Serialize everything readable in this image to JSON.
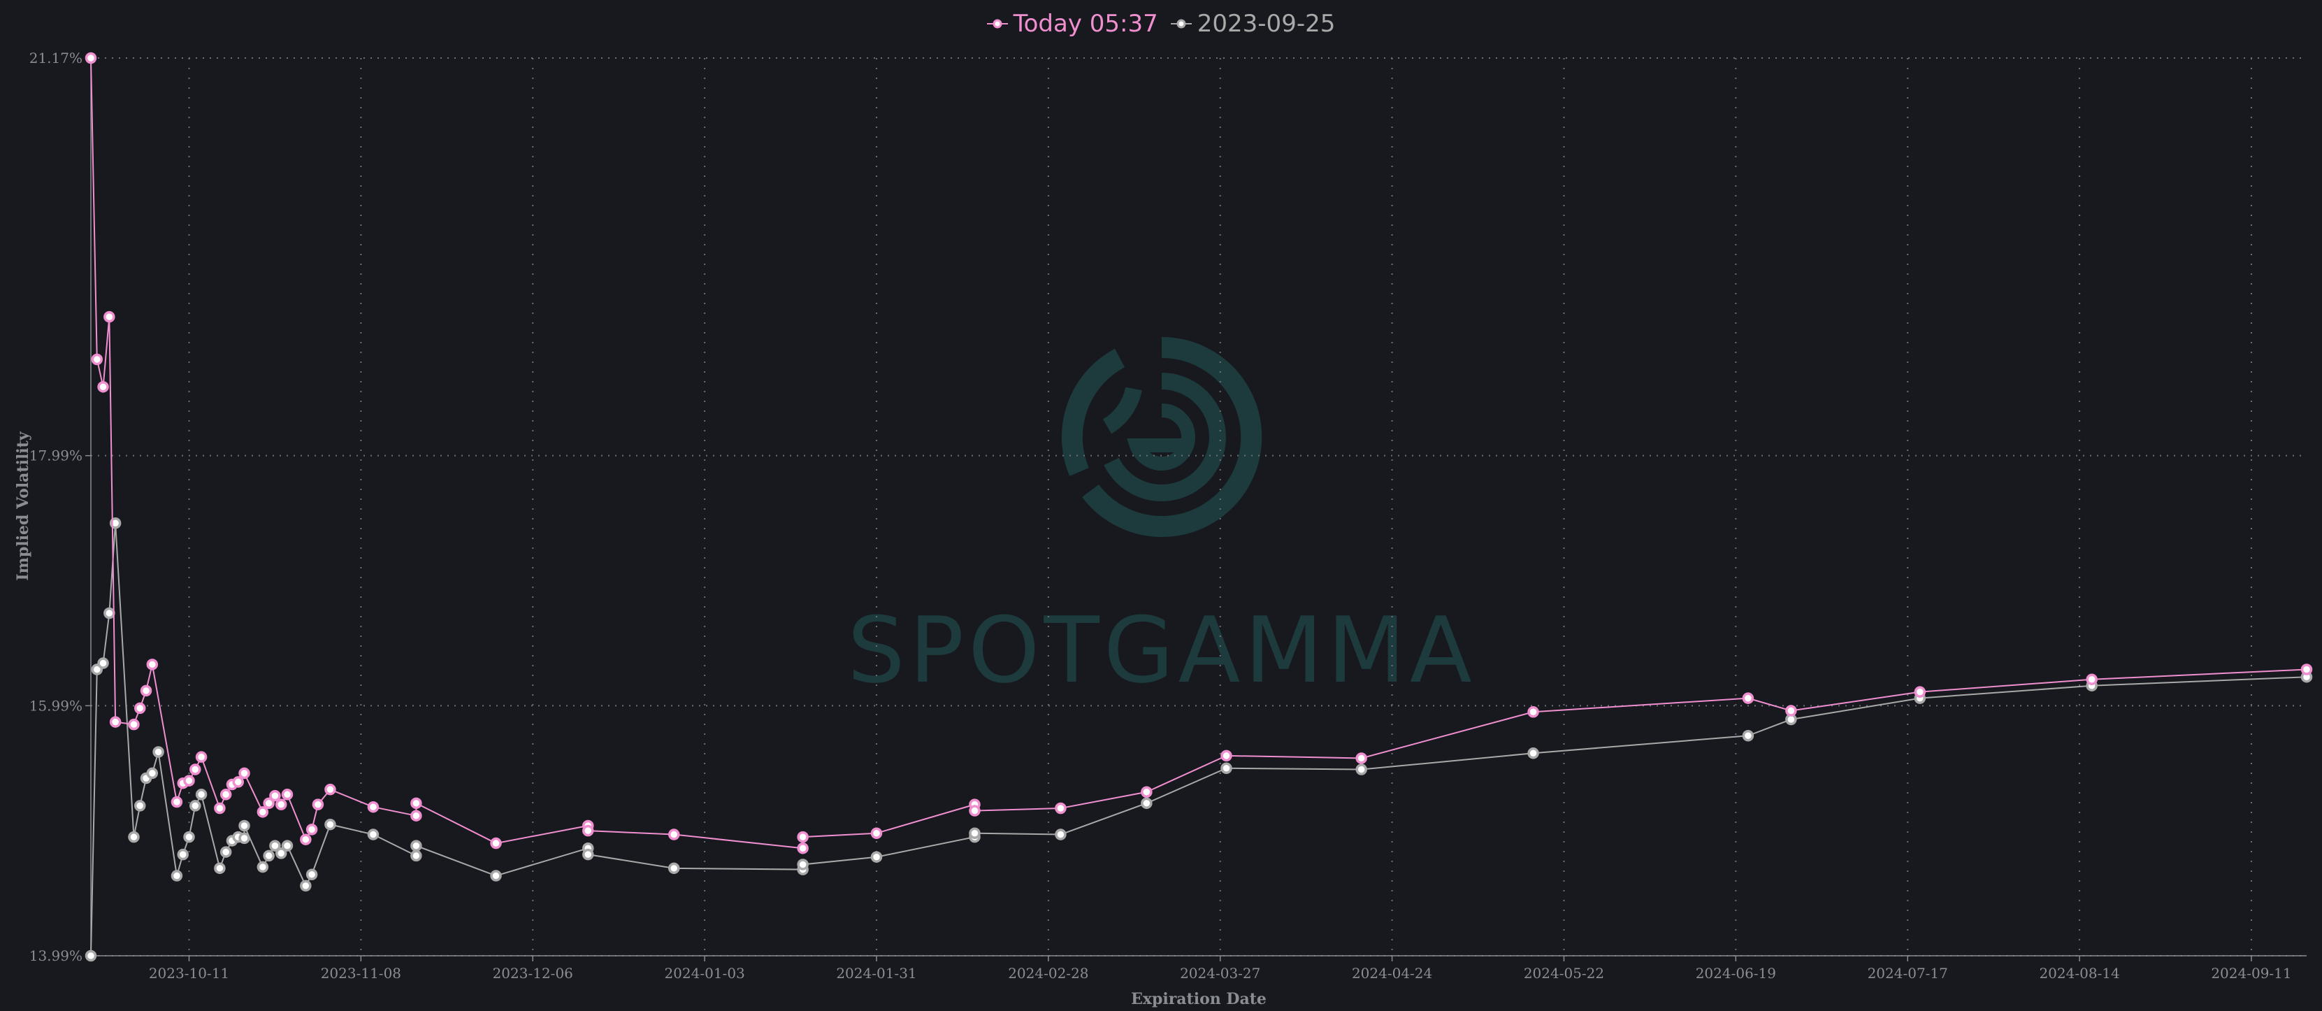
{
  "colors": {
    "background": "#17191e",
    "today": "#f08fd0",
    "previous": "#a9a9a9",
    "grid": "#6b6e74",
    "axis": "#8a8d93",
    "watermark": "#1d3a3c"
  },
  "watermark": {
    "text": "SPOTGAMMA",
    "icon": "spotgamma-logo-icon"
  },
  "legend": {
    "items": [
      {
        "label": "Today 05:37",
        "icon": "line-marker-icon"
      },
      {
        "label": "2023-09-25",
        "icon": "line-marker-icon"
      }
    ]
  },
  "chart_data": {
    "type": "line",
    "xlabel": "Expiration Date",
    "ylabel": "Implied Volatility",
    "x_ticks": [
      "2023-10-11",
      "2023-11-08",
      "2023-12-06",
      "2024-01-03",
      "2024-01-31",
      "2024-02-28",
      "2024-03-27",
      "2024-04-24",
      "2024-05-22",
      "2024-06-19",
      "2024-07-17",
      "2024-08-14",
      "2024-09-11"
    ],
    "y_ticks": [
      "13.99%",
      "15.99%",
      "17.99%",
      "21.17%"
    ],
    "ylim": [
      13.99,
      21.17
    ],
    "xlim": [
      "2023-09-25",
      "2024-09-20"
    ],
    "grid": true,
    "legend_position": "top-center",
    "series": [
      {
        "name": "Today 05:37",
        "points": [
          [
            "2023-09-25",
            21.17
          ],
          [
            "2023-09-26",
            18.76
          ],
          [
            "2023-09-27",
            18.54
          ],
          [
            "2023-09-28",
            19.1
          ],
          [
            "2023-09-29",
            15.86
          ],
          [
            "2023-10-02",
            15.84
          ],
          [
            "2023-10-03",
            15.97
          ],
          [
            "2023-10-04",
            16.11
          ],
          [
            "2023-10-05",
            16.32
          ],
          [
            "2023-10-09",
            15.22
          ],
          [
            "2023-10-10",
            15.37
          ],
          [
            "2023-10-11",
            15.39
          ],
          [
            "2023-10-12",
            15.48
          ],
          [
            "2023-10-13",
            15.58
          ],
          [
            "2023-10-16",
            15.17
          ],
          [
            "2023-10-17",
            15.28
          ],
          [
            "2023-10-18",
            15.36
          ],
          [
            "2023-10-19",
            15.38
          ],
          [
            "2023-10-20",
            15.45
          ],
          [
            "2023-10-23",
            15.14
          ],
          [
            "2023-10-24",
            15.21
          ],
          [
            "2023-10-25",
            15.27
          ],
          [
            "2023-10-26",
            15.2
          ],
          [
            "2023-10-27",
            15.28
          ],
          [
            "2023-10-30",
            14.92
          ],
          [
            "2023-10-31",
            15.0
          ],
          [
            "2023-11-01",
            15.2
          ],
          [
            "2023-11-03",
            15.32
          ],
          [
            "2023-11-10",
            15.18
          ],
          [
            "2023-11-17",
            15.11
          ],
          [
            "2023-11-17",
            15.21
          ],
          [
            "2023-11-30",
            14.89
          ],
          [
            "2023-12-15",
            15.03
          ],
          [
            "2023-12-15",
            14.99
          ],
          [
            "2023-12-29",
            14.96
          ],
          [
            "2024-01-19",
            14.85
          ],
          [
            "2024-01-19",
            14.94
          ],
          [
            "2024-01-31",
            14.97
          ],
          [
            "2024-02-16",
            15.2
          ],
          [
            "2024-02-16",
            15.15
          ],
          [
            "2024-03-01",
            15.17
          ],
          [
            "2024-03-15",
            15.3
          ],
          [
            "2024-03-28",
            15.59
          ],
          [
            "2024-04-19",
            15.57
          ],
          [
            "2024-05-17",
            15.94
          ],
          [
            "2024-06-21",
            16.05
          ],
          [
            "2024-06-28",
            15.95
          ],
          [
            "2024-07-19",
            16.1
          ],
          [
            "2024-08-16",
            16.2
          ],
          [
            "2024-09-20",
            16.28
          ]
        ]
      },
      {
        "name": "2023-09-25",
        "points": [
          [
            "2023-09-25",
            13.99
          ],
          [
            "2023-09-26",
            16.28
          ],
          [
            "2023-09-27",
            16.33
          ],
          [
            "2023-09-28",
            16.73
          ],
          [
            "2023-09-29",
            17.45
          ],
          [
            "2023-10-02",
            14.94
          ],
          [
            "2023-10-03",
            15.19
          ],
          [
            "2023-10-04",
            15.41
          ],
          [
            "2023-10-05",
            15.45
          ],
          [
            "2023-10-06",
            15.62
          ],
          [
            "2023-10-09",
            14.63
          ],
          [
            "2023-10-10",
            14.8
          ],
          [
            "2023-10-11",
            14.94
          ],
          [
            "2023-10-12",
            15.19
          ],
          [
            "2023-10-13",
            15.28
          ],
          [
            "2023-10-16",
            14.69
          ],
          [
            "2023-10-17",
            14.82
          ],
          [
            "2023-10-18",
            14.91
          ],
          [
            "2023-10-19",
            14.94
          ],
          [
            "2023-10-20",
            14.93
          ],
          [
            "2023-10-20",
            15.03
          ],
          [
            "2023-10-23",
            14.7
          ],
          [
            "2023-10-24",
            14.79
          ],
          [
            "2023-10-25",
            14.87
          ],
          [
            "2023-10-26",
            14.81
          ],
          [
            "2023-10-27",
            14.87
          ],
          [
            "2023-10-30",
            14.55
          ],
          [
            "2023-10-31",
            14.64
          ],
          [
            "2023-11-03",
            15.04
          ],
          [
            "2023-11-10",
            14.96
          ],
          [
            "2023-11-17",
            14.79
          ],
          [
            "2023-11-17",
            14.87
          ],
          [
            "2023-11-30",
            14.63
          ],
          [
            "2023-12-15",
            14.85
          ],
          [
            "2023-12-15",
            14.8
          ],
          [
            "2023-12-29",
            14.69
          ],
          [
            "2024-01-19",
            14.68
          ],
          [
            "2024-01-19",
            14.72
          ],
          [
            "2024-01-31",
            14.78
          ],
          [
            "2024-02-16",
            14.94
          ],
          [
            "2024-02-16",
            14.97
          ],
          [
            "2024-03-01",
            14.96
          ],
          [
            "2024-03-15",
            15.21
          ],
          [
            "2024-03-28",
            15.49
          ],
          [
            "2024-04-19",
            15.48
          ],
          [
            "2024-05-17",
            15.61
          ],
          [
            "2024-06-21",
            15.75
          ],
          [
            "2024-06-28",
            15.88
          ],
          [
            "2024-07-19",
            16.05
          ],
          [
            "2024-08-16",
            16.15
          ],
          [
            "2024-09-20",
            16.22
          ]
        ]
      }
    ]
  }
}
